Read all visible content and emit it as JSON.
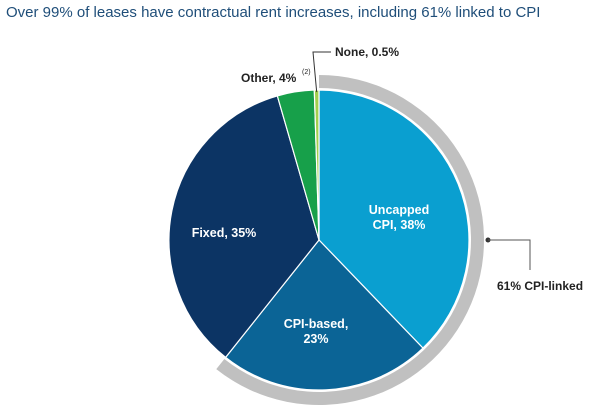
{
  "chart_data": {
    "type": "pie",
    "title": "Over 99% of leases have contractual rent increases, including 61% linked to CPI",
    "slices": [
      {
        "name": "Uncapped CPI",
        "value": 38,
        "color": "#0a9fd0",
        "label_lines": [
          "Uncapped",
          "CPI, 38%"
        ]
      },
      {
        "name": "CPI-based",
        "value": 23,
        "color": "#0b6496",
        "label_lines": [
          "CPI-based,",
          "23%"
        ]
      },
      {
        "name": "Fixed",
        "value": 35,
        "color": "#0c3464",
        "label_lines": [
          "Fixed, 35%"
        ]
      },
      {
        "name": "Other",
        "value": 4,
        "color": "#17a04a",
        "label_lines": [
          "Other, 4%"
        ],
        "footnote": "(2)"
      },
      {
        "name": "None",
        "value": 0.5,
        "color": "#a2cf4e",
        "label_lines": [
          "None, 0.5%"
        ]
      }
    ],
    "group_ring": {
      "label": "61% CPI-linked",
      "value": 61,
      "color": "#c0c0c0"
    }
  }
}
